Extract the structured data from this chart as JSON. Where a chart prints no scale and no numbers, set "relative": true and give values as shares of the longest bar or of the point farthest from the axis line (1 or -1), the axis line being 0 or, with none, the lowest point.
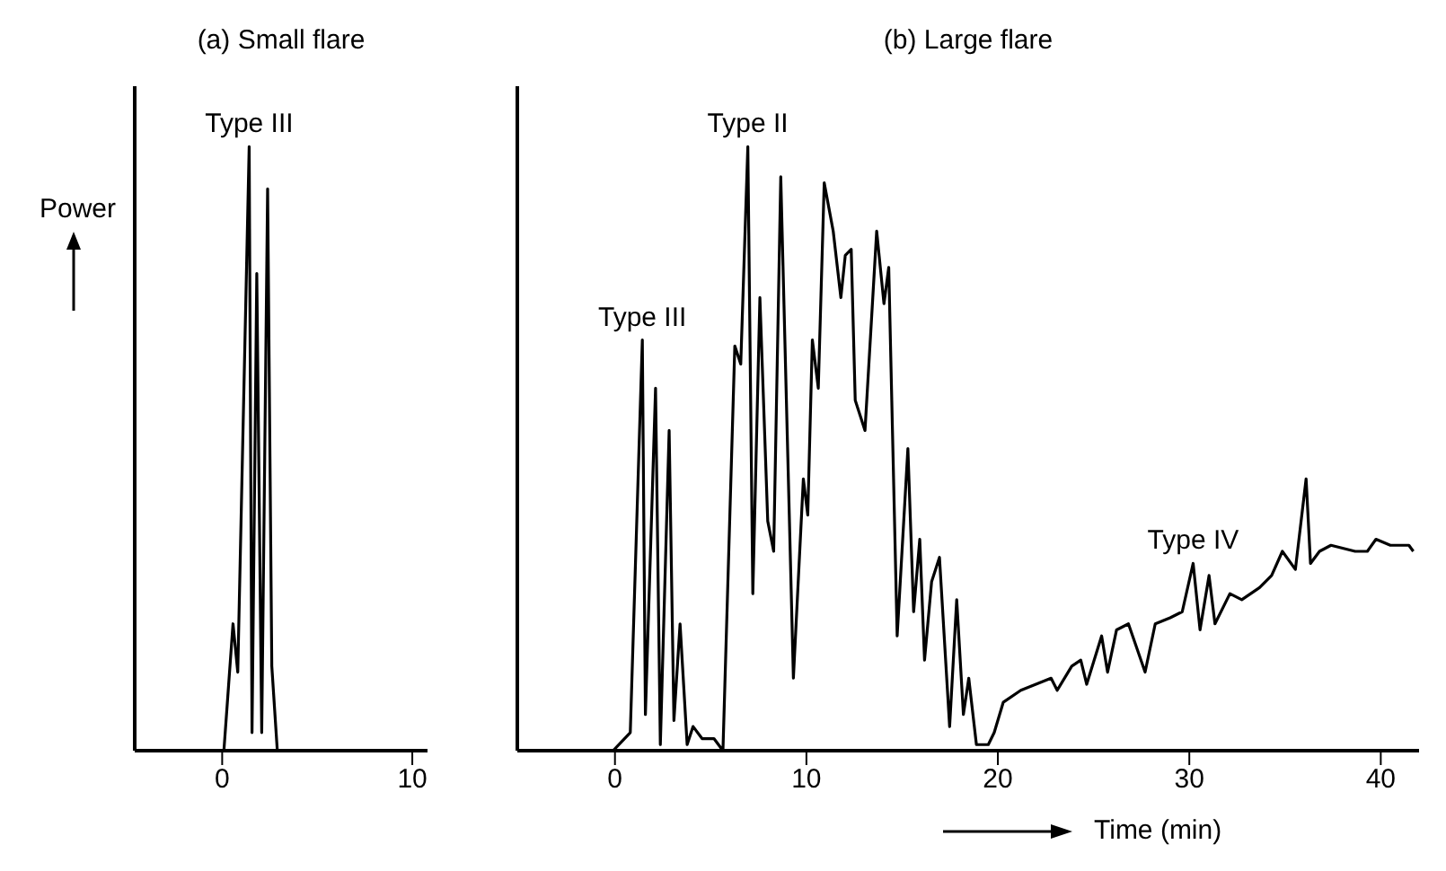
{
  "chart_data": [
    {
      "type": "line",
      "title": "(a) Small flare",
      "ylabel": "Power",
      "relative": true,
      "tick_labels": "x",
      "grid": false,
      "legend": false,
      "marker": "none",
      "line_style": "solid",
      "xlim": [
        -4.6,
        10.8
      ],
      "xticks": [
        0,
        10
      ],
      "series": [
        {
          "color": "#000000",
          "x": [
            -1.0,
            0.09,
            0.57,
            0.82,
            1.42,
            1.57,
            1.82,
            2.08,
            2.39,
            2.61,
            2.9,
            10.0
          ],
          "values": [
            0,
            0,
            0.21,
            0.13,
            1.0,
            0.03,
            0.79,
            0.03,
            0.93,
            0.14,
            0,
            0
          ]
        }
      ],
      "annotations": [
        {
          "text": "Type III",
          "x": 1.42,
          "y": 1.0
        }
      ]
    },
    {
      "type": "line",
      "title": "(b) Large flare",
      "xlabel": "Time (min)",
      "relative": true,
      "tick_labels": "x",
      "grid": false,
      "legend": false,
      "marker": "none",
      "line_style": "solid",
      "xlim": [
        -5.1,
        42
      ],
      "xticks": [
        0,
        10,
        20,
        30,
        40
      ],
      "series": [
        {
          "color": "#000000",
          "x": [
            -0.1,
            0.8,
            1.43,
            1.59,
            2.12,
            2.37,
            2.83,
            3.08,
            3.4,
            3.77,
            4.08,
            4.55,
            5.17,
            5.64,
            6.26,
            6.57,
            6.94,
            7.2,
            7.57,
            7.98,
            8.29,
            8.66,
            9.32,
            9.84,
            10.07,
            10.31,
            10.62,
            10.93,
            11.4,
            11.8,
            12.03,
            12.34,
            12.55,
            13.06,
            13.67,
            14.05,
            14.3,
            14.74,
            15.3,
            15.6,
            15.92,
            16.17,
            16.54,
            16.95,
            17.48,
            17.85,
            18.2,
            18.48,
            18.88,
            19.5,
            19.81,
            20.28,
            21.2,
            22.78,
            23.1,
            23.86,
            24.33,
            24.64,
            25.42,
            25.73,
            26.2,
            26.82,
            27.69,
            28.22,
            29.0,
            29.63,
            30.2,
            30.56,
            31.03,
            31.34,
            32.12,
            32.74,
            33.67,
            34.3,
            34.86,
            35.54,
            36.1,
            36.33,
            36.8,
            37.4,
            38.66,
            39.3,
            39.75,
            40.5,
            41.47,
            41.7
          ],
          "values": [
            0,
            0.03,
            0.68,
            0.06,
            0.6,
            0.01,
            0.53,
            0.05,
            0.21,
            0.01,
            0.04,
            0.02,
            0.02,
            0,
            0.67,
            0.64,
            1.0,
            0.26,
            0.75,
            0.38,
            0.33,
            0.95,
            0.12,
            0.45,
            0.39,
            0.68,
            0.6,
            0.94,
            0.86,
            0.75,
            0.82,
            0.83,
            0.58,
            0.53,
            0.86,
            0.74,
            0.8,
            0.19,
            0.5,
            0.23,
            0.35,
            0.15,
            0.28,
            0.32,
            0.04,
            0.25,
            0.06,
            0.12,
            0.01,
            0.01,
            0.03,
            0.08,
            0.1,
            0.12,
            0.1,
            0.14,
            0.15,
            0.11,
            0.19,
            0.13,
            0.2,
            0.21,
            0.13,
            0.21,
            0.22,
            0.23,
            0.31,
            0.2,
            0.29,
            0.21,
            0.26,
            0.25,
            0.27,
            0.29,
            0.33,
            0.3,
            0.45,
            0.31,
            0.33,
            0.34,
            0.33,
            0.33,
            0.35,
            0.34,
            0.34,
            0.33
          ]
        }
      ],
      "annotations": [
        {
          "text": "Type III",
          "x": 1.43,
          "y": 0.68
        },
        {
          "text": "Type II",
          "x": 6.94,
          "y": 1.0
        },
        {
          "text": "Type IV",
          "x": 30.2,
          "y": 0.31
        }
      ]
    }
  ]
}
